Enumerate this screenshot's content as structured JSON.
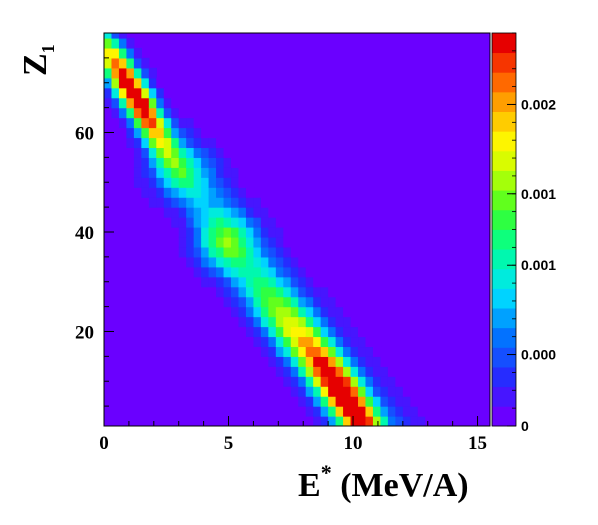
{
  "chart_data": {
    "type": "heatmap",
    "title": "",
    "xlabel": {
      "main": "E",
      "sup": "*",
      "rest": " (MeV/A)"
    },
    "ylabel": {
      "main": "Z",
      "sub": "1"
    },
    "xlim": [
      0,
      15.5
    ],
    "ylim": [
      1,
      80
    ],
    "x_ticks": [
      0,
      5,
      10,
      15
    ],
    "y_ticks": [
      20,
      40,
      60
    ],
    "x_tick_labels": [
      "0",
      "5",
      "10",
      "15"
    ],
    "y_tick_labels": [
      "20",
      "40",
      "60"
    ],
    "grid": false,
    "colormap": "rainbow",
    "background_color": "#6a00ff",
    "zrange": [
      0,
      0.0022
    ],
    "colorbar": {
      "ticks": [
        0,
        0.0004,
        0.0009,
        0.0013,
        0.0018
      ],
      "tick_labels": [
        "0",
        "0.000",
        "0.001",
        "0.001",
        "0.002"
      ]
    },
    "x_bin_width": 0.3,
    "y_bin_width": 2,
    "components": [
      {
        "description": "high-Z ridge",
        "center_x": 1.2,
        "center_z": 69,
        "peak": 0.0022
      },
      {
        "description": "low-Z ridge",
        "center_x": 9.8,
        "center_z": 6,
        "peak": 0.0022
      },
      {
        "description": "crossing region",
        "center_x": 4.8,
        "center_z": 38,
        "peak": 0.0008
      }
    ]
  }
}
